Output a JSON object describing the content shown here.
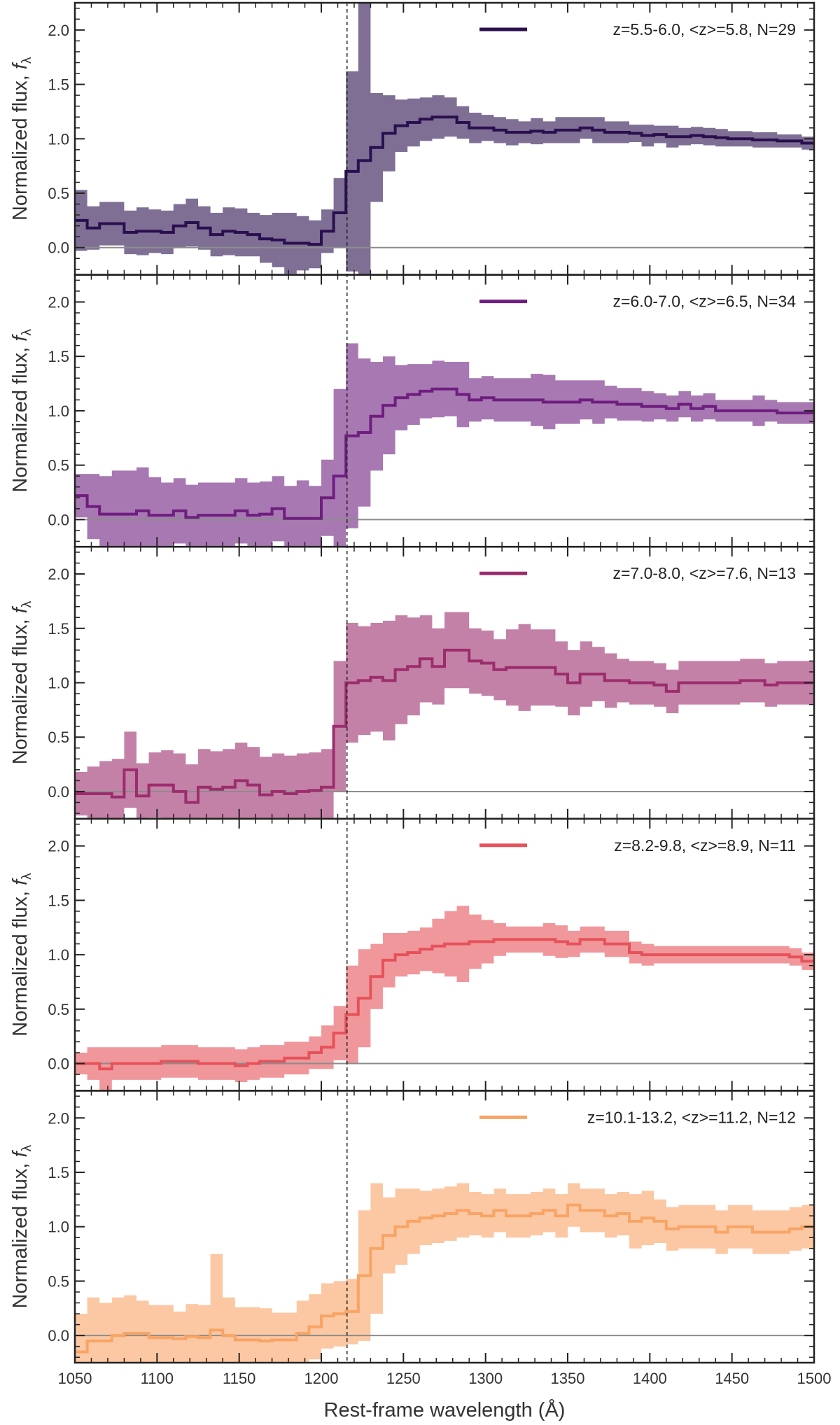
{
  "chart_data": {
    "type": "line",
    "subtype": "stacked-step-panels-with-error-bands",
    "xlabel": "Rest-frame wavelength (Å)",
    "ylabel_main": "Normalized flux, ",
    "ylabel_symbol": "f",
    "ylabel_subscript": "λ",
    "xlim": [
      1050,
      1500
    ],
    "ylim": [
      -0.25,
      2.25
    ],
    "x_ticks": [
      1050,
      1100,
      1150,
      1200,
      1250,
      1300,
      1350,
      1400,
      1450,
      1500
    ],
    "x_tick_labels": [
      "1050",
      "1100",
      "1150",
      "1200",
      "1250",
      "1300",
      "1350",
      "1400",
      "1450",
      "1500"
    ],
    "y_ticks": [
      0.0,
      0.5,
      1.0,
      1.5,
      2.0
    ],
    "y_tick_labels": [
      "0.0",
      "0.5",
      "1.0",
      "1.5",
      "2.0"
    ],
    "reference_line_x": 1215.67,
    "zero_line_y": 0.0,
    "bin_edges": [
      1050,
      1057.5,
      1065,
      1072.5,
      1080,
      1087.5,
      1095,
      1102.5,
      1110,
      1117.5,
      1125,
      1132.5,
      1140,
      1147.5,
      1155,
      1162.5,
      1170,
      1177.5,
      1185,
      1192.5,
      1200,
      1207.5,
      1215,
      1222.5,
      1230,
      1237.5,
      1245,
      1252.5,
      1260,
      1267.5,
      1275,
      1282.5,
      1290,
      1297.5,
      1305,
      1312.5,
      1320,
      1327.5,
      1335,
      1342.5,
      1350,
      1357.5,
      1365,
      1372.5,
      1380,
      1387.5,
      1395,
      1402.5,
      1410,
      1417.5,
      1425,
      1432.5,
      1440,
      1447.5,
      1455,
      1462.5,
      1470,
      1477.5,
      1485,
      1492.5,
      1500
    ],
    "panels": [
      {
        "legend": "z=5.5-6.0, <z>=5.8, N=29",
        "color": "#2a0f4e",
        "values": [
          0.25,
          0.18,
          0.22,
          0.22,
          0.14,
          0.15,
          0.15,
          0.14,
          0.2,
          0.23,
          0.18,
          0.12,
          0.15,
          0.14,
          0.12,
          0.08,
          0.07,
          0.04,
          0.04,
          0.03,
          0.15,
          0.32,
          0.7,
          0.8,
          0.92,
          1.05,
          1.12,
          1.15,
          1.18,
          1.2,
          1.2,
          1.15,
          1.1,
          1.1,
          1.08,
          1.06,
          1.06,
          1.07,
          1.06,
          1.08,
          1.08,
          1.1,
          1.08,
          1.06,
          1.06,
          1.05,
          1.03,
          1.04,
          1.02,
          1.02,
          1.03,
          1.02,
          1.01,
          1.0,
          1.0,
          0.99,
          0.99,
          0.98,
          0.98,
          0.96
        ],
        "errors": [
          0.28,
          0.2,
          0.2,
          0.2,
          0.2,
          0.22,
          0.2,
          0.2,
          0.2,
          0.22,
          0.2,
          0.2,
          0.22,
          0.22,
          0.2,
          0.22,
          0.25,
          0.28,
          0.25,
          0.22,
          0.2,
          0.32,
          0.92,
          1.48,
          0.5,
          0.35,
          0.24,
          0.22,
          0.2,
          0.2,
          0.18,
          0.15,
          0.14,
          0.12,
          0.12,
          0.12,
          0.1,
          0.12,
          0.1,
          0.12,
          0.12,
          0.1,
          0.12,
          0.1,
          0.1,
          0.08,
          0.1,
          0.08,
          0.1,
          0.08,
          0.08,
          0.08,
          0.08,
          0.07,
          0.07,
          0.07,
          0.07,
          0.06,
          0.06,
          0.06
        ]
      },
      {
        "legend": "z=6.0-7.0, <z>=6.5, N=34",
        "color": "#6e1e7e",
        "values": [
          0.22,
          0.12,
          0.05,
          0.05,
          0.05,
          0.08,
          0.04,
          0.04,
          0.08,
          0.02,
          0.04,
          0.04,
          0.04,
          0.08,
          0.04,
          0.05,
          0.1,
          0.01,
          0.01,
          0.01,
          0.2,
          0.4,
          0.77,
          0.8,
          0.95,
          1.05,
          1.12,
          1.15,
          1.18,
          1.2,
          1.2,
          1.15,
          1.1,
          1.12,
          1.1,
          1.1,
          1.1,
          1.1,
          1.08,
          1.08,
          1.08,
          1.1,
          1.08,
          1.08,
          1.06,
          1.06,
          1.04,
          1.04,
          1.02,
          1.06,
          1.02,
          1.04,
          1.0,
          1.0,
          1.0,
          1.0,
          1.0,
          0.98,
          0.98,
          0.98
        ],
        "errors": [
          0.2,
          0.3,
          0.35,
          0.4,
          0.4,
          0.4,
          0.35,
          0.3,
          0.3,
          0.3,
          0.3,
          0.3,
          0.3,
          0.3,
          0.3,
          0.3,
          0.3,
          0.3,
          0.35,
          0.3,
          0.35,
          0.8,
          0.85,
          0.68,
          0.5,
          0.45,
          0.3,
          0.28,
          0.25,
          0.26,
          0.25,
          0.3,
          0.2,
          0.2,
          0.2,
          0.2,
          0.2,
          0.24,
          0.25,
          0.2,
          0.2,
          0.18,
          0.2,
          0.15,
          0.15,
          0.15,
          0.14,
          0.12,
          0.12,
          0.12,
          0.12,
          0.12,
          0.1,
          0.1,
          0.1,
          0.14,
          0.1,
          0.1,
          0.1,
          0.1
        ]
      },
      {
        "legend": "z=7.0-8.0, <z>=7.6, N=13",
        "color": "#9c2d6d",
        "values": [
          -0.02,
          -0.02,
          -0.02,
          -0.05,
          0.2,
          -0.04,
          0.06,
          0.06,
          0.0,
          -0.1,
          0.04,
          0.02,
          0.04,
          0.1,
          0.06,
          -0.03,
          0.0,
          -0.02,
          0.0,
          0.01,
          0.04,
          0.6,
          1.0,
          1.02,
          1.05,
          1.02,
          1.12,
          1.15,
          1.22,
          1.15,
          1.3,
          1.3,
          1.2,
          1.18,
          1.12,
          1.14,
          1.14,
          1.14,
          1.14,
          1.08,
          1.0,
          1.08,
          1.08,
          1.02,
          1.02,
          1.0,
          1.0,
          0.98,
          0.92,
          1.0,
          1.0,
          1.0,
          1.0,
          1.0,
          1.02,
          1.02,
          0.98,
          1.0,
          1.0,
          1.0
        ],
        "errors": [
          0.2,
          0.25,
          0.3,
          0.35,
          0.35,
          0.3,
          0.3,
          0.32,
          0.35,
          0.35,
          0.35,
          0.35,
          0.35,
          0.35,
          0.35,
          0.35,
          0.35,
          0.35,
          0.35,
          0.35,
          0.35,
          0.6,
          0.55,
          0.5,
          0.5,
          0.55,
          0.5,
          0.45,
          0.4,
          0.35,
          0.35,
          0.35,
          0.3,
          0.3,
          0.28,
          0.35,
          0.4,
          0.35,
          0.35,
          0.3,
          0.3,
          0.3,
          0.25,
          0.25,
          0.2,
          0.2,
          0.2,
          0.2,
          0.2,
          0.2,
          0.2,
          0.2,
          0.2,
          0.2,
          0.2,
          0.2,
          0.2,
          0.2,
          0.2,
          0.2
        ]
      },
      {
        "legend": "z=8.2-9.8, <z>=8.9, N=11",
        "color": "#e6525a",
        "values": [
          0.0,
          0.0,
          -0.05,
          0.0,
          0.0,
          0.0,
          0.0,
          0.02,
          0.02,
          0.02,
          0.0,
          0.0,
          0.0,
          -0.02,
          0.0,
          0.02,
          0.02,
          0.05,
          0.05,
          0.1,
          0.15,
          0.28,
          0.45,
          0.6,
          0.8,
          0.95,
          1.0,
          1.02,
          1.05,
          1.08,
          1.1,
          1.1,
          1.12,
          1.12,
          1.14,
          1.14,
          1.14,
          1.14,
          1.14,
          1.12,
          1.1,
          1.14,
          1.14,
          1.1,
          1.1,
          1.02,
          1.0,
          1.0,
          1.0,
          1.0,
          1.0,
          1.0,
          1.0,
          1.0,
          1.0,
          1.0,
          1.0,
          1.0,
          0.98,
          0.94
        ],
        "errors": [
          0.1,
          0.15,
          0.2,
          0.15,
          0.15,
          0.15,
          0.15,
          0.15,
          0.15,
          0.15,
          0.15,
          0.15,
          0.15,
          0.15,
          0.15,
          0.15,
          0.15,
          0.15,
          0.15,
          0.15,
          0.2,
          0.25,
          0.45,
          0.45,
          0.3,
          0.25,
          0.2,
          0.2,
          0.2,
          0.25,
          0.3,
          0.35,
          0.25,
          0.2,
          0.15,
          0.12,
          0.12,
          0.12,
          0.15,
          0.15,
          0.12,
          0.12,
          0.12,
          0.12,
          0.12,
          0.1,
          0.1,
          0.08,
          0.08,
          0.08,
          0.08,
          0.08,
          0.08,
          0.08,
          0.08,
          0.08,
          0.08,
          0.08,
          0.08,
          0.08
        ]
      },
      {
        "legend": "z=10.1-13.2, <z>=11.2, N=12",
        "color": "#f8a465",
        "values": [
          -0.15,
          -0.05,
          -0.05,
          0.0,
          0.02,
          0.02,
          -0.02,
          -0.02,
          -0.03,
          -0.01,
          -0.02,
          0.05,
          0.0,
          -0.04,
          -0.04,
          -0.05,
          -0.04,
          -0.04,
          0.02,
          0.08,
          0.18,
          0.2,
          0.22,
          0.55,
          0.8,
          0.92,
          1.0,
          1.05,
          1.08,
          1.1,
          1.12,
          1.15,
          1.12,
          1.1,
          1.15,
          1.1,
          1.1,
          1.12,
          1.15,
          1.1,
          1.2,
          1.15,
          1.15,
          1.1,
          1.12,
          1.05,
          1.08,
          1.05,
          0.98,
          1.0,
          1.0,
          1.0,
          0.95,
          1.0,
          1.0,
          0.95,
          0.95,
          0.95,
          0.98,
          1.0
        ],
        "errors": [
          0.35,
          0.4,
          0.35,
          0.35,
          0.35,
          0.3,
          0.3,
          0.3,
          0.25,
          0.3,
          0.3,
          0.7,
          0.35,
          0.3,
          0.3,
          0.3,
          0.25,
          0.25,
          0.3,
          0.3,
          0.3,
          0.3,
          0.3,
          0.6,
          0.6,
          0.35,
          0.35,
          0.3,
          0.25,
          0.25,
          0.25,
          0.25,
          0.2,
          0.2,
          0.2,
          0.2,
          0.2,
          0.2,
          0.2,
          0.2,
          0.2,
          0.2,
          0.2,
          0.2,
          0.2,
          0.25,
          0.25,
          0.2,
          0.2,
          0.2,
          0.2,
          0.2,
          0.2,
          0.2,
          0.2,
          0.2,
          0.2,
          0.2,
          0.2,
          0.2
        ]
      }
    ]
  }
}
